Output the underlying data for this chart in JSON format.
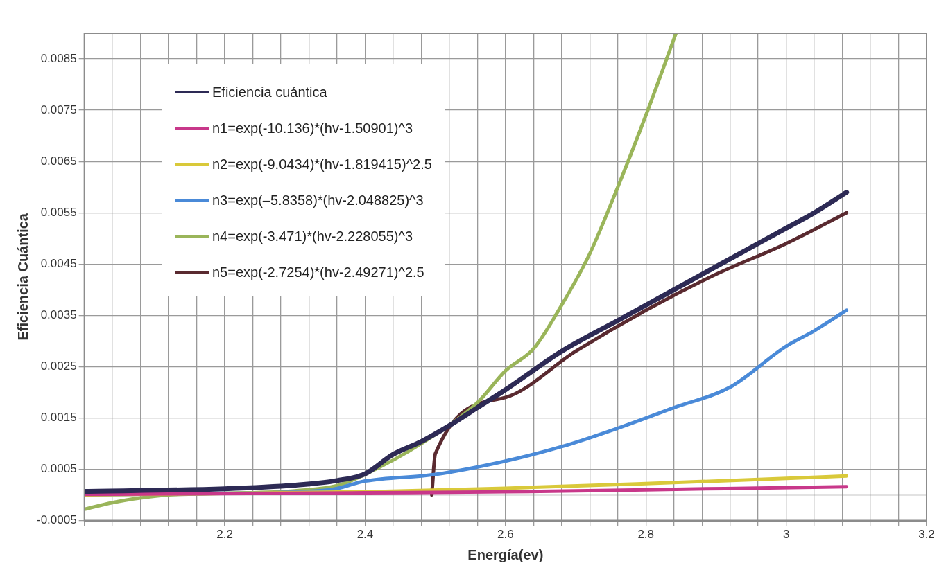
{
  "chart_data": {
    "type": "line",
    "xlabel": "Energía(ev)",
    "ylabel": "Eficiencia Cuántica",
    "xlim": [
      2,
      3.2
    ],
    "ylim": [
      -0.0005,
      0.009
    ],
    "xticks": [
      {
        "value": 2,
        "label": null
      },
      {
        "value": 2.04,
        "label": null
      },
      {
        "value": 2.08,
        "label": null
      },
      {
        "value": 2.12,
        "label": null
      },
      {
        "value": 2.16,
        "label": null
      },
      2.2,
      {
        "value": 2.24,
        "label": null
      },
      {
        "value": 2.28,
        "label": null
      },
      {
        "value": 2.32,
        "label": null
      },
      {
        "value": 2.36,
        "label": null
      },
      2.4,
      {
        "value": 2.44,
        "label": null
      },
      {
        "value": 2.48,
        "label": null
      },
      {
        "value": 2.52,
        "label": null
      },
      {
        "value": 2.56,
        "label": null
      },
      2.6,
      {
        "value": 2.64,
        "label": null
      },
      {
        "value": 2.68,
        "label": null
      },
      {
        "value": 2.72,
        "label": null
      },
      {
        "value": 2.76,
        "label": null
      },
      2.8,
      {
        "value": 2.84,
        "label": null
      },
      {
        "value": 2.88,
        "label": null
      },
      {
        "value": 2.92,
        "label": null
      },
      {
        "value": 2.96,
        "label": null
      },
      3,
      {
        "value": 3.04,
        "label": null
      },
      {
        "value": 3.08,
        "label": null
      },
      {
        "value": 3.12,
        "label": null
      },
      {
        "value": 3.16,
        "label": null
      },
      3.2
    ],
    "yticks": [
      -0.0005,
      0.0005,
      0.0015,
      0.0025,
      0.0035,
      0.0045,
      0.0055,
      0.0065,
      0.0075,
      0.0085
    ],
    "grid": true,
    "legend": "top left",
    "ref_lines": [
      {
        "axis": "y",
        "value": 0,
        "color": "#8c8c8c"
      }
    ],
    "series": [
      {
        "name": "Eficiencia cuántica",
        "color": "#2d2a55",
        "x": [
          2,
          2.2,
          2.3,
          2.36,
          2.4,
          2.44,
          2.48,
          2.52,
          2.56,
          2.6,
          2.68,
          2.76,
          2.84,
          2.92,
          3,
          3.04,
          3.086
        ],
        "values": [
          7e-05,
          0.00012,
          0.00019,
          0.00028,
          0.00041,
          0.00079,
          0.00104,
          0.00135,
          0.0017,
          0.00205,
          0.0028,
          0.0034,
          0.004,
          0.0046,
          0.0052,
          0.0055,
          0.0059
        ]
      },
      {
        "name": "n1=exp(-10.136)*(hv-1.50901)^3",
        "color": "#c8388a",
        "x": [
          2,
          2.4,
          2.6,
          2.8,
          3.086
        ],
        "values": [
          1e-05,
          4e-05,
          6e-05,
          0.0001,
          0.00016
        ]
      },
      {
        "name": "n2=exp(-9.0434)*(hv-1.819415)^2.5",
        "color": "#d9c93a",
        "x": [
          2,
          2.4,
          2.6,
          2.8,
          3,
          3.086
        ],
        "values": [
          0,
          6e-05,
          0.00013,
          0.00022,
          0.00032,
          0.00037
        ]
      },
      {
        "name": "n3=exp(–5.8358)*(hv-2.048825)^3",
        "color": "#4a8ad8",
        "x": [
          2,
          2.2,
          2.35,
          2.4,
          2.5,
          2.6,
          2.68,
          2.76,
          2.84,
          2.92,
          3,
          3.04,
          3.086
        ],
        "values": [
          0,
          3e-05,
          0.0001,
          0.00027,
          0.0004,
          0.00066,
          0.00094,
          0.0013,
          0.0017,
          0.0021,
          0.0029,
          0.0032,
          0.0036
        ]
      },
      {
        "name": "n4=exp(-3.471)*(hv-2.228055)^3",
        "color": "#9ab55a",
        "x": [
          2,
          2.04,
          2.08,
          2.12,
          2.2,
          2.3,
          2.36,
          2.4,
          2.48,
          2.56,
          2.6,
          2.64,
          2.68,
          2.72,
          2.76,
          2.8,
          2.843
        ],
        "values": [
          -0.00028,
          -0.00015,
          -6e-05,
          0,
          3e-05,
          8e-05,
          0.00018,
          0.0004,
          0.001,
          0.0018,
          0.00242,
          0.00285,
          0.0037,
          0.0047,
          0.006,
          0.0074,
          0.009
        ]
      },
      {
        "name": "n5=exp(-2.7254)*(hv-2.49271)^2.5",
        "color": "#5a2a30",
        "x": [
          2.495,
          2.5,
          2.6,
          2.7,
          2.8,
          2.9,
          3,
          3.086
        ],
        "values": [
          0,
          0.0008,
          0.0019,
          0.0028,
          0.0036,
          0.0043,
          0.0049,
          0.0055
        ]
      }
    ]
  }
}
